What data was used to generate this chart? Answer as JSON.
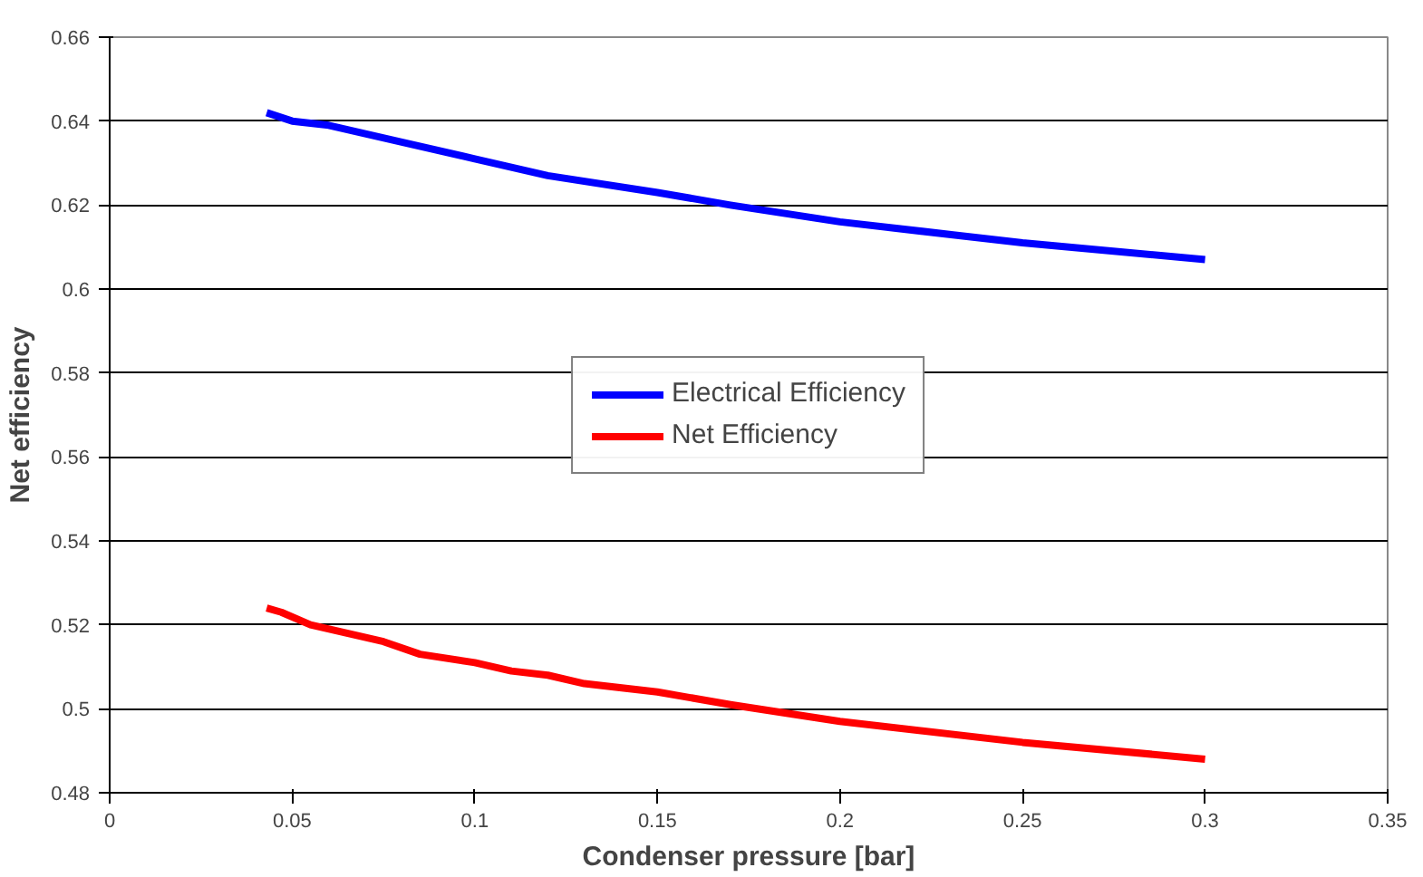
{
  "chart_data": {
    "type": "line",
    "xlabel": "Condenser pressure [bar]",
    "ylabel": "Net efficiency",
    "xlim": [
      0,
      0.35
    ],
    "xticks": [
      0,
      0.05,
      0.1,
      0.15,
      0.2,
      0.25,
      0.3,
      0.35
    ],
    "ylim": [
      0.48,
      0.66
    ],
    "yticks": [
      0.48,
      0.5,
      0.52,
      0.54,
      0.56,
      0.58,
      0.6,
      0.62,
      0.64,
      0.66
    ],
    "grid": "y",
    "legend": "center",
    "line_style": "solid",
    "marker": "none",
    "series": [
      {
        "name": "Electrical Efficiency",
        "color": "#0000ff",
        "x": [
          0.043,
          0.05,
          0.06,
          0.07,
          0.08,
          0.1,
          0.12,
          0.15,
          0.17,
          0.2,
          0.25,
          0.3
        ],
        "values": [
          0.642,
          0.64,
          0.639,
          0.637,
          0.635,
          0.631,
          0.627,
          0.623,
          0.62,
          0.616,
          0.611,
          0.607
        ]
      },
      {
        "name": "Net Efficiency",
        "color": "#ff0000",
        "x": [
          0.043,
          0.047,
          0.055,
          0.065,
          0.075,
          0.085,
          0.1,
          0.11,
          0.12,
          0.13,
          0.15,
          0.17,
          0.2,
          0.25,
          0.3
        ],
        "values": [
          0.524,
          0.523,
          0.52,
          0.518,
          0.516,
          0.513,
          0.511,
          0.509,
          0.508,
          0.506,
          0.504,
          0.501,
          0.497,
          0.492,
          0.488
        ]
      }
    ]
  }
}
